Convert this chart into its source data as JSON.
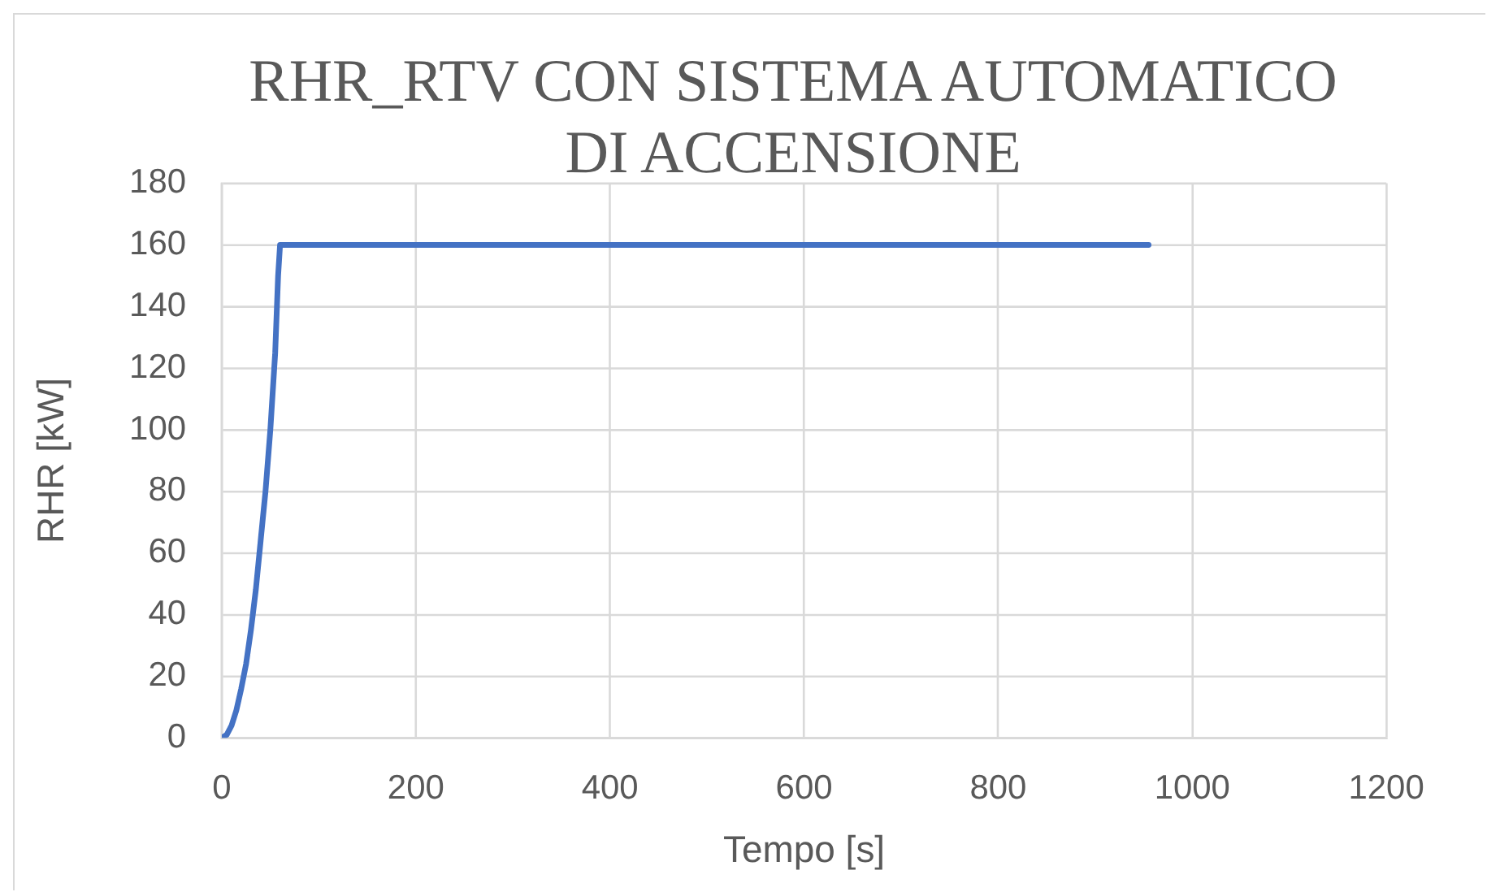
{
  "chart_data": {
    "type": "line",
    "title": "RHR_RTV CON SISTEMA AUTOMATICO DI ACCENSIONE",
    "xlabel": "Tempo [s]",
    "ylabel": "RHR [kW]",
    "x": [
      0,
      5,
      10,
      15,
      20,
      25,
      30,
      35,
      40,
      45,
      50,
      55,
      58,
      60,
      955
    ],
    "series": [
      {
        "color": "#4472c4",
        "values": [
          0,
          1,
          4,
          9,
          16,
          24,
          35,
          48,
          64,
          80,
          100,
          125,
          150,
          160,
          160
        ]
      }
    ],
    "xlim": [
      0,
      1200
    ],
    "xticks": [
      0,
      200,
      400,
      600,
      800,
      1000,
      1200
    ],
    "ylim": [
      0,
      180
    ],
    "yticks": [
      0,
      20,
      40,
      60,
      80,
      100,
      120,
      140,
      160,
      180
    ],
    "grid": true,
    "legend": false,
    "marker": "none",
    "line_style": "solid"
  }
}
